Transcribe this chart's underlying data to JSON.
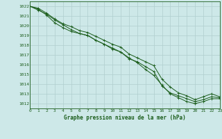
{
  "title": "Graphe pression niveau de la mer (hPa)",
  "xlim": [
    0,
    23
  ],
  "ylim": [
    1011.5,
    1022.5
  ],
  "yticks": [
    1012,
    1013,
    1014,
    1015,
    1016,
    1017,
    1018,
    1019,
    1020,
    1021,
    1022
  ],
  "xticks": [
    0,
    1,
    2,
    3,
    4,
    5,
    6,
    7,
    8,
    9,
    10,
    11,
    12,
    13,
    14,
    15,
    16,
    17,
    18,
    19,
    20,
    21,
    22,
    23
  ],
  "bg_color": "#cde8e8",
  "grid_major_color": "#b0cece",
  "grid_minor_color": "#c4dcdc",
  "line_color": "#1a5c1a",
  "text_color": "#1a5c1a",
  "line1_y": [
    1022.0,
    1021.7,
    1021.1,
    1020.3,
    1019.8,
    1019.4,
    1019.2,
    1019.0,
    1018.5,
    1018.1,
    1017.6,
    1017.3,
    1016.6,
    1016.3,
    1015.8,
    1015.3,
    1013.8,
    1013.1,
    1012.8,
    1012.5,
    1012.2,
    1012.4,
    1012.7,
    1012.6
  ],
  "line2_y": [
    1022.0,
    1021.6,
    1021.2,
    1020.6,
    1020.1,
    1019.6,
    1019.2,
    1019.0,
    1018.5,
    1018.1,
    1017.7,
    1017.3,
    1016.7,
    1016.2,
    1015.5,
    1014.9,
    1013.9,
    1013.0,
    1012.6,
    1012.2,
    1012.0,
    1012.2,
    1012.5,
    1012.5
  ],
  "line3_y": [
    1022.0,
    1021.8,
    1021.3,
    1020.7,
    1020.2,
    1019.9,
    1019.5,
    1019.3,
    1018.9,
    1018.5,
    1018.1,
    1017.8,
    1017.1,
    1016.7,
    1016.3,
    1015.9,
    1014.5,
    1013.7,
    1013.1,
    1012.8,
    1012.4,
    1012.7,
    1013.0,
    1012.7
  ]
}
